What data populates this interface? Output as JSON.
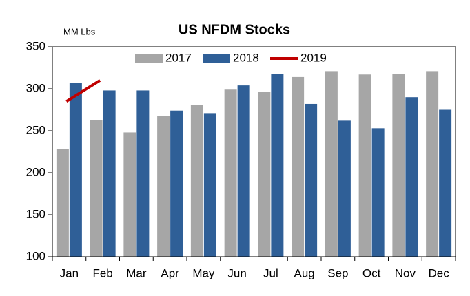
{
  "chart_data": {
    "type": "bar",
    "title": "US NFDM Stocks",
    "y_label": "MM Lbs",
    "categories": [
      "Jan",
      "Feb",
      "Mar",
      "Apr",
      "May",
      "Jun",
      "Jul",
      "Aug",
      "Sep",
      "Oct",
      "Nov",
      "Dec"
    ],
    "series": [
      {
        "name": "2017",
        "type": "bar",
        "color": "#a6a6a6",
        "values": [
          228,
          263,
          248,
          268,
          281,
          299,
          296,
          314,
          321,
          317,
          318,
          321
        ]
      },
      {
        "name": "2018",
        "type": "bar",
        "color": "#2f5f97",
        "values": [
          307,
          298,
          298,
          274,
          271,
          304,
          318,
          282,
          262,
          253,
          290,
          275
        ]
      },
      {
        "name": "2019",
        "type": "line",
        "color": "#c00000",
        "values": [
          285,
          310,
          null,
          null,
          null,
          null,
          null,
          null,
          null,
          null,
          null,
          null
        ]
      }
    ],
    "ylim": [
      100,
      350
    ],
    "yticks": [
      100,
      150,
      200,
      250,
      300,
      350
    ],
    "legend": "top"
  }
}
